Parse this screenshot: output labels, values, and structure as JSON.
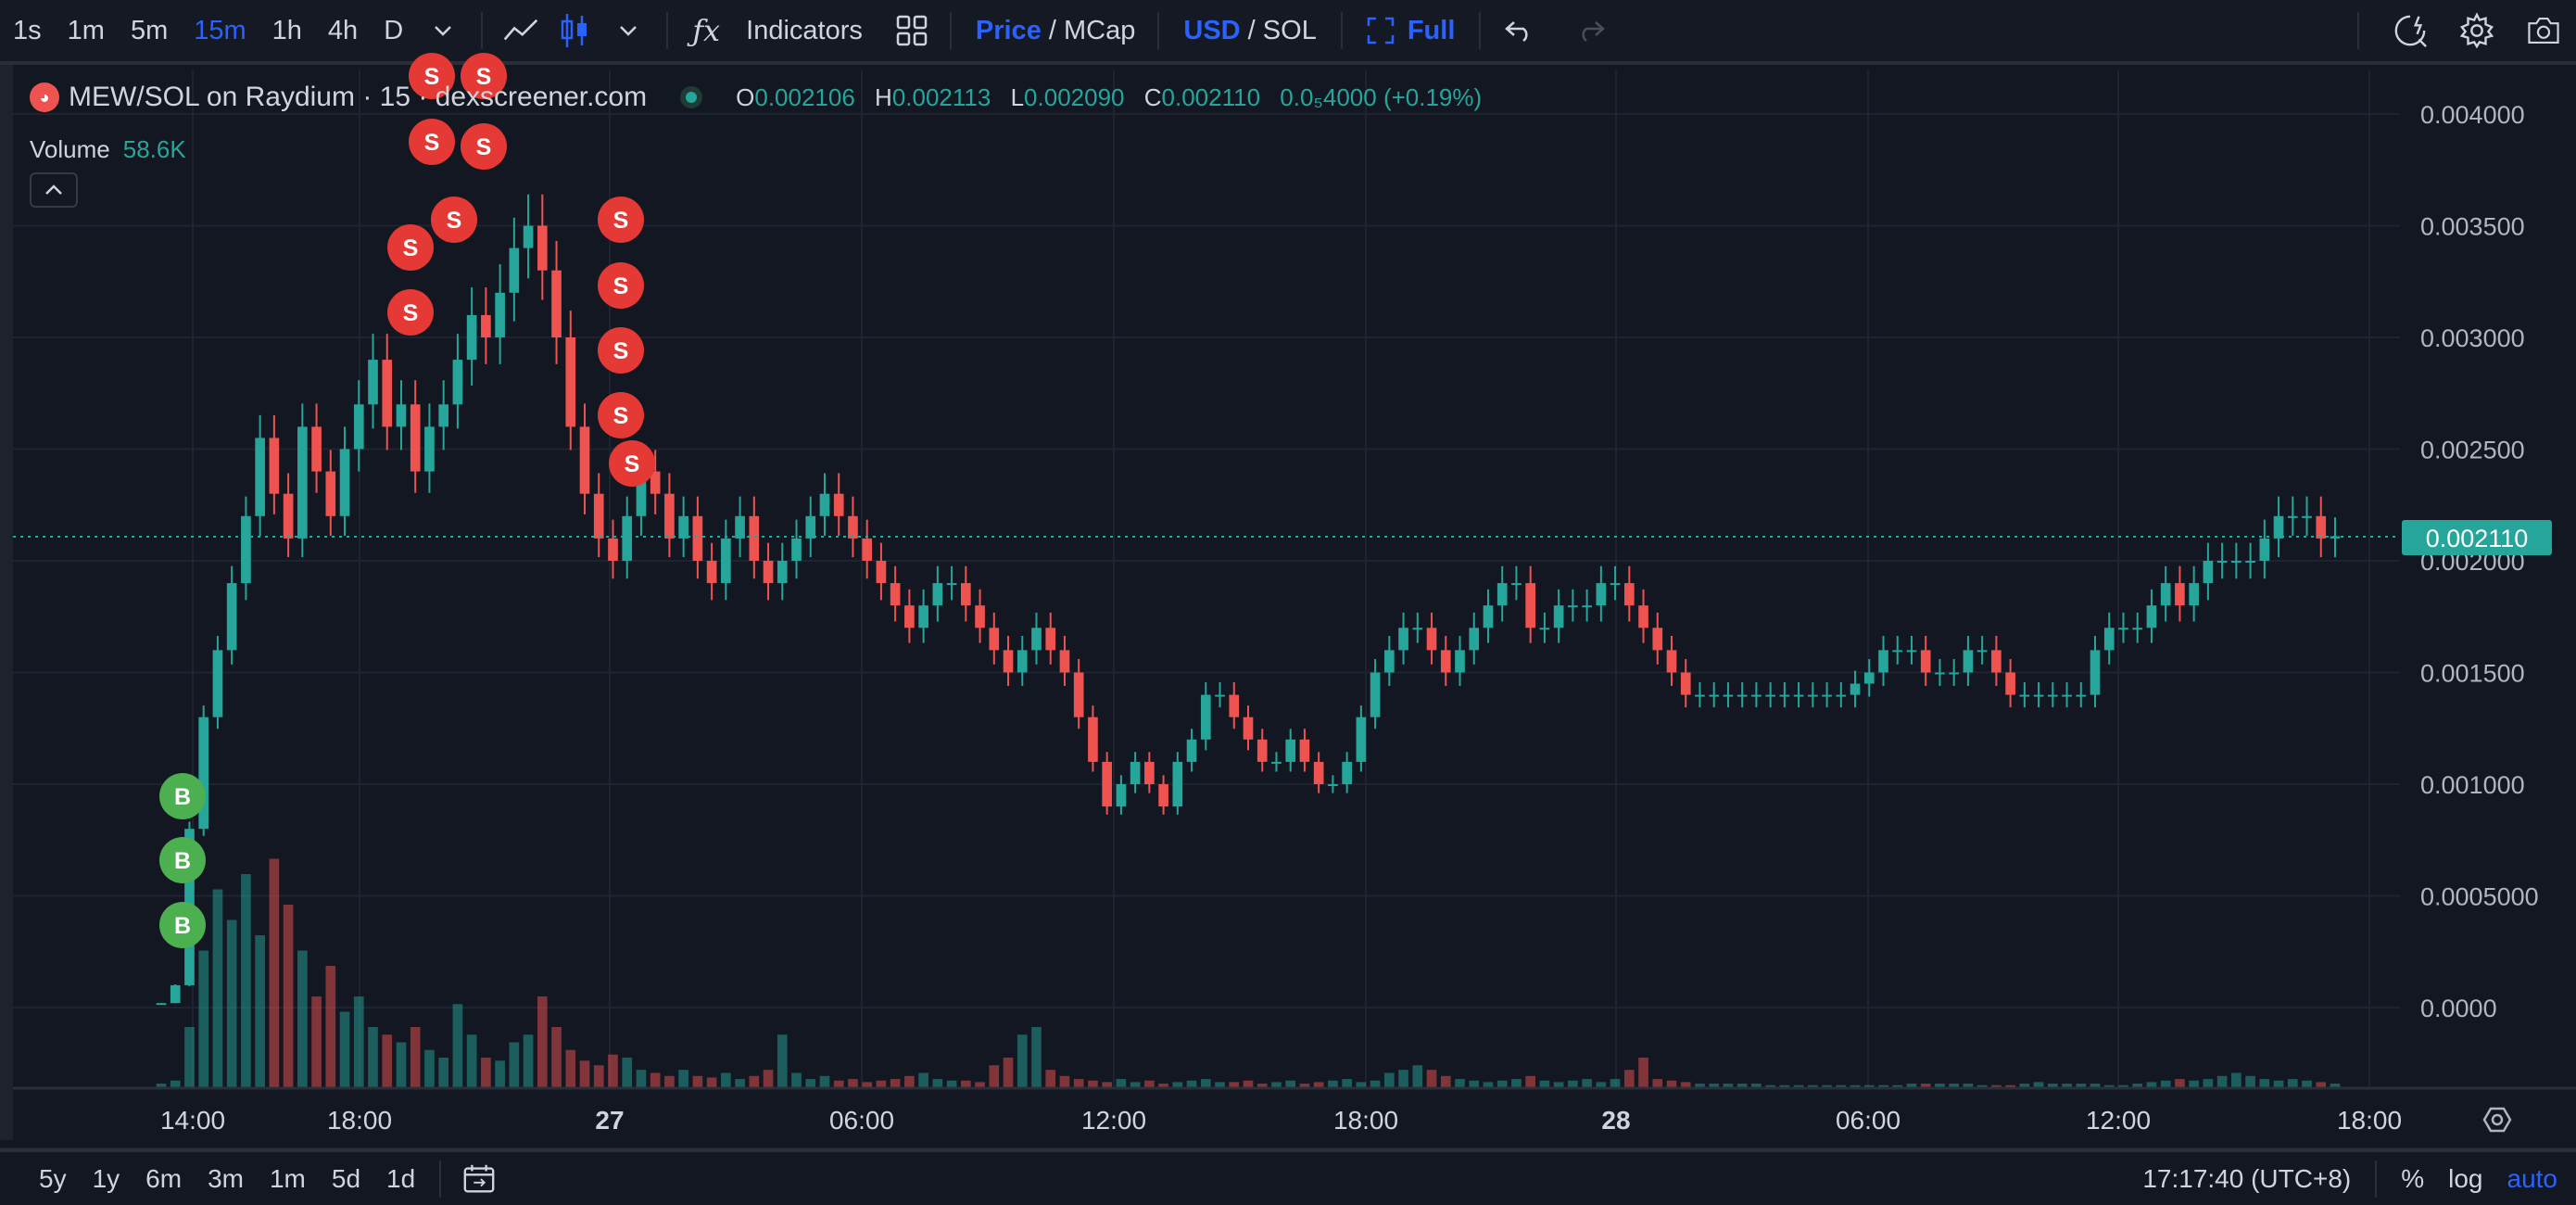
{
  "toolbar": {
    "intervals": [
      "1s",
      "1m",
      "5m",
      "15m",
      "1h",
      "4h",
      "D"
    ],
    "active_interval": "15m",
    "indicators_label": "Indicators",
    "price_label": "Price",
    "mcap_label": "MCap",
    "usd_label": "USD",
    "sol_label": "SOL",
    "full_label": "Full",
    "slash": "/"
  },
  "legend": {
    "title": "MEW/SOL on Raydium · 15 · dexscreener.com",
    "o_key": "O",
    "o": "0.002106",
    "h_key": "H",
    "h": "0.002113",
    "l_key": "L",
    "l": "0.002090",
    "c_key": "C",
    "c": "0.002110",
    "change": "0.0₅4000 (+0.19%)",
    "volume_label": "Volume",
    "volume_value": "58.6K"
  },
  "price_axis": {
    "labels": [
      "0.004000",
      "0.003500",
      "0.003000",
      "0.002500",
      "0.002000",
      "0.001500",
      "0.001000",
      "0.0005000",
      "0.0000"
    ],
    "last_price": "0.002110"
  },
  "time_axis": {
    "labels": [
      "14:00",
      "18:00",
      "27",
      "06:00",
      "12:00",
      "18:00",
      "28",
      "06:00",
      "12:00",
      "18:00"
    ],
    "bold": [
      false,
      false,
      true,
      false,
      false,
      false,
      true,
      false,
      false,
      false
    ]
  },
  "markers": {
    "buy": "B",
    "sell": "S"
  },
  "bottom": {
    "ranges": [
      "5y",
      "1y",
      "6m",
      "3m",
      "1m",
      "5d",
      "1d"
    ],
    "clock": "17:17:40 (UTC+8)",
    "percent": "%",
    "log": "log",
    "auto": "auto"
  },
  "colors": {
    "up": "#26a69a",
    "down": "#ef5350",
    "buy_marker": "#4caf50",
    "sell_marker": "#e53935",
    "accent": "#2962ff",
    "bg": "#131722",
    "grid": "#1f2330"
  },
  "chart_data": {
    "type": "candlestick",
    "pair": "MEW/SOL",
    "interval": "15m",
    "ylim": [
      -0.00025,
      0.0041
    ],
    "close_series": [
      2e-05,
      0.0001,
      0.0008,
      0.0013,
      0.0016,
      0.0019,
      0.0022,
      0.00255,
      0.0023,
      0.0021,
      0.0026,
      0.0024,
      0.0022,
      0.0025,
      0.0027,
      0.0029,
      0.0026,
      0.0027,
      0.0024,
      0.0026,
      0.0027,
      0.0029,
      0.0031,
      0.003,
      0.0032,
      0.0034,
      0.0035,
      0.0033,
      0.003,
      0.0026,
      0.0023,
      0.0021,
      0.002,
      0.0022,
      0.0024,
      0.0023,
      0.0021,
      0.0022,
      0.002,
      0.0019,
      0.0021,
      0.0022,
      0.002,
      0.0019,
      0.002,
      0.0021,
      0.0022,
      0.0023,
      0.0022,
      0.0021,
      0.002,
      0.0019,
      0.0018,
      0.0017,
      0.0018,
      0.0019,
      0.0019,
      0.0018,
      0.0017,
      0.0016,
      0.0015,
      0.0016,
      0.0017,
      0.0016,
      0.0015,
      0.0013,
      0.0011,
      0.0009,
      0.001,
      0.0011,
      0.001,
      0.0009,
      0.0011,
      0.0012,
      0.0014,
      0.0014,
      0.0013,
      0.0012,
      0.0011,
      0.0011,
      0.0012,
      0.0011,
      0.001,
      0.001,
      0.0011,
      0.0013,
      0.0015,
      0.0016,
      0.0017,
      0.0017,
      0.0016,
      0.0015,
      0.0016,
      0.0017,
      0.0018,
      0.0019,
      0.0019,
      0.0017,
      0.0017,
      0.0018,
      0.0018,
      0.0018,
      0.0019,
      0.0019,
      0.0018,
      0.0017,
      0.0016,
      0.0015,
      0.0014,
      0.0014,
      0.0014,
      0.0014,
      0.0014,
      0.0014,
      0.0014,
      0.0014,
      0.0014,
      0.0014,
      0.0014,
      0.0014,
      0.00145,
      0.0015,
      0.0016,
      0.0016,
      0.0016,
      0.0015,
      0.0015,
      0.0015,
      0.0016,
      0.0016,
      0.0015,
      0.0014,
      0.0014,
      0.0014,
      0.0014,
      0.0014,
      0.0014,
      0.0016,
      0.0017,
      0.0017,
      0.0017,
      0.0018,
      0.0019,
      0.0018,
      0.0019,
      0.002,
      0.002,
      0.002,
      0.002,
      0.0021,
      0.0022,
      0.0022,
      0.0022,
      0.0021,
      0.00211
    ],
    "volume_series": [
      3,
      5,
      40,
      90,
      130,
      110,
      140,
      100,
      150,
      120,
      90,
      60,
      80,
      50,
      60,
      40,
      35,
      30,
      40,
      25,
      20,
      55,
      35,
      20,
      18,
      30,
      35,
      60,
      40,
      25,
      18,
      15,
      22,
      20,
      12,
      10,
      8,
      12,
      8,
      7,
      10,
      6,
      8,
      12,
      35,
      10,
      6,
      8,
      5,
      6,
      4,
      5,
      6,
      8,
      10,
      6,
      5,
      5,
      4,
      15,
      20,
      35,
      40,
      12,
      8,
      6,
      5,
      4,
      6,
      4,
      5,
      3,
      4,
      5,
      6,
      4,
      4,
      5,
      3,
      4,
      5,
      3,
      4,
      5,
      6,
      4,
      5,
      10,
      12,
      15,
      12,
      8,
      6,
      5,
      4,
      5,
      6,
      8,
      5,
      4,
      5,
      6,
      4,
      6,
      12,
      20,
      6,
      5,
      4,
      3,
      3,
      3,
      3,
      3,
      2,
      2,
      2,
      2,
      2,
      2,
      2,
      2,
      2,
      2,
      3,
      3,
      3,
      3,
      3,
      2,
      2,
      2,
      3,
      4,
      3,
      3,
      3,
      3,
      2,
      2,
      3,
      4,
      5,
      6,
      5,
      6,
      8,
      10,
      8,
      6,
      5,
      6,
      5,
      4,
      3
    ]
  }
}
